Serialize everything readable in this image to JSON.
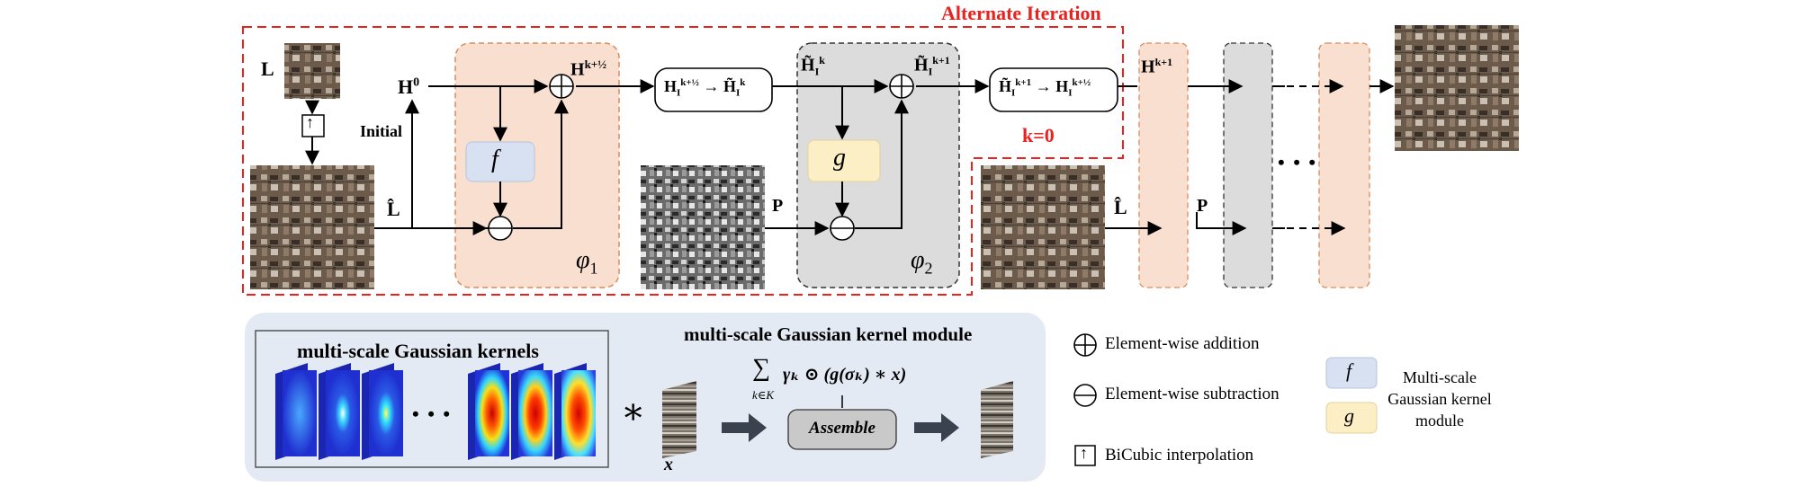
{
  "top": {
    "alternate_iteration": "Alternate Iteration",
    "k0": "k=0",
    "initial": "Initial",
    "L": "L",
    "H0": "H",
    "H0_sup": "0",
    "L_hat": "L̂",
    "P": "P",
    "L_hat_right": "L̂",
    "P_right": "P",
    "Hk_half": "H",
    "Hk_half_sup": "k+½",
    "transform1_left": "H",
    "transform1_left_sub": "I",
    "transform1_left_sup": "k+½",
    "transform1_arrow": "→",
    "transform1_right": "H̃",
    "transform1_right_sub": "I",
    "transform1_right_sup": "k",
    "HtildeIk": "H̃",
    "HtildeIk_sub": "I",
    "HtildeIk_sup": "k",
    "HtildeIk1": "H̃",
    "HtildeIk1_sub": "I",
    "HtildeIk1_sup": "k+1",
    "transform2_left": "H̃",
    "transform2_left_sub": "I",
    "transform2_left_sup": "k+1",
    "transform2_arrow": "→",
    "transform2_right": "H",
    "transform2_right_sub": "I",
    "transform2_right_sup": "k+½",
    "Hk1": "H",
    "Hk1_sup": "k+1",
    "f_label": "f",
    "g_label": "g",
    "phi1": "φ",
    "phi1_sub": "1",
    "phi2": "φ",
    "phi2_sub": "2",
    "upsample_icon_label": "↑",
    "ellipsis_mid": "• • •"
  },
  "bottom": {
    "kernels_title": "multi-scale Gaussian kernels",
    "module_title": "multi-scale Gaussian kernel module",
    "ellipsis": "• • •",
    "conv_star": "∗",
    "sum_symbol": "∑",
    "sum_sub": "k∈K",
    "formula": "γₖ ⊙ (g(σₖ) ∗ x)",
    "x_label": "x",
    "assemble": "Assemble"
  },
  "legend": {
    "addition": "Element-wise addition",
    "subtraction": "Element-wise subtraction",
    "bicubic": "BiCubic interpolation",
    "f": "f",
    "g": "g",
    "module_line1": "Multi-scale",
    "module_line2": "Gaussian kernel",
    "module_line3": "module"
  },
  "colors": {
    "red_dash": "#e8231f",
    "peach_fill": "#f9dfcf",
    "peach_border": "#d98c5a",
    "gray_fill": "#dcdcdc",
    "f_box": "#d8e1f2",
    "g_box": "#fcefc6",
    "panel_bg": "#e4eaf4"
  }
}
